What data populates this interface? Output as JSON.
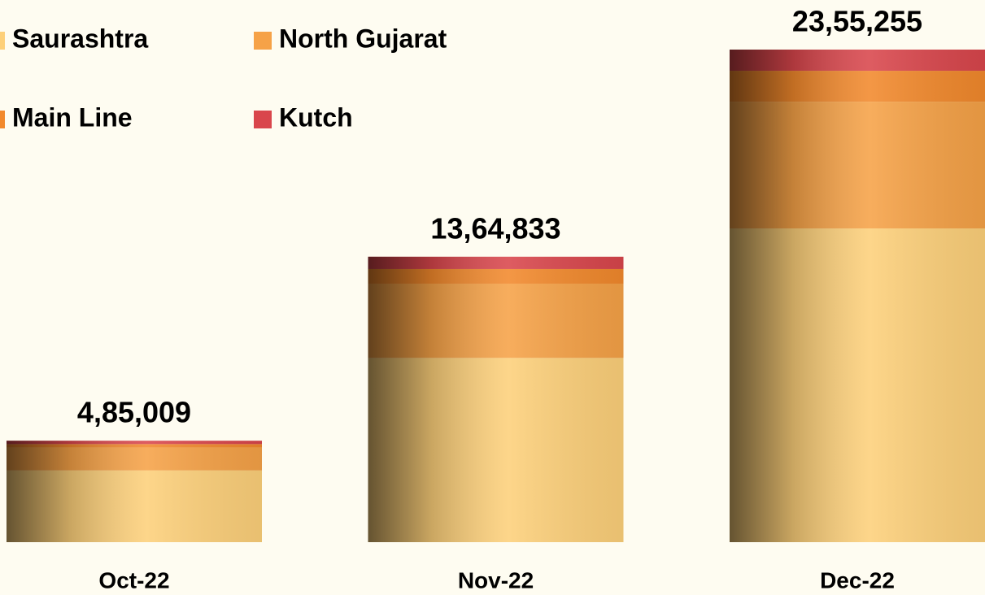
{
  "chart_data": {
    "type": "stacked_bar",
    "categories": [
      "Oct-22",
      "Nov-22",
      "Dec-22"
    ],
    "series": [
      {
        "name": "Saurashtra",
        "color": "#fdd07a",
        "values": [
          343000,
          881000,
          1500000
        ]
      },
      {
        "name": "North Gujarat",
        "color": "#f6a247",
        "values": [
          110000,
          355000,
          606000
        ]
      },
      {
        "name": "Main Line",
        "color": "#f2892c",
        "values": [
          16000,
          70000,
          148000
        ]
      },
      {
        "name": "Kutch",
        "color": "#d9464c",
        "values": [
          16009,
          58833,
          101255
        ]
      }
    ],
    "totals": [
      485009,
      1364833,
      2355255
    ],
    "total_labels": [
      "4,85,009",
      "13,64,833",
      "23,55,255"
    ]
  }
}
